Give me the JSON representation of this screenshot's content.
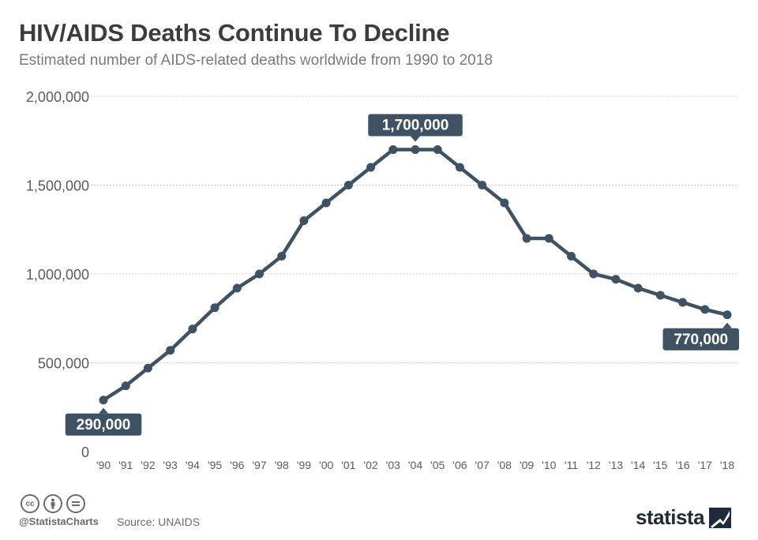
{
  "header": {
    "title": "HIV/AIDS Deaths Continue To Decline",
    "subtitle": "Estimated number of AIDS-related deaths worldwide from 1990 to 2018"
  },
  "footer": {
    "handle": "@StatistaCharts",
    "source": "Source: UNAIDS",
    "brand": "statista",
    "icons": [
      "cc-icon",
      "attribution-person-icon",
      "no-derivatives-icon"
    ]
  },
  "colors": {
    "line": "#3e5263",
    "label_bg": "#3e5263",
    "grid": "#cfcfcf",
    "axis_text": "#5a5a5a"
  },
  "chart_data": {
    "type": "line",
    "title": "HIV/AIDS Deaths Continue To Decline",
    "subtitle": "Estimated number of AIDS-related deaths worldwide from 1990 to 2018",
    "xlabel": "",
    "ylabel": "",
    "ylim": [
      0,
      2000000
    ],
    "yticks": [
      0,
      500000,
      1000000,
      1500000,
      2000000
    ],
    "ytick_labels": [
      "0",
      "500,000",
      "1,000,000",
      "1,500,000",
      "2,000,000"
    ],
    "grid": true,
    "categories": [
      "'90",
      "'91",
      "'92",
      "'93",
      "'94",
      "'95",
      "'96",
      "'97",
      "'98",
      "'99",
      "'00",
      "'01",
      "'02",
      "'03",
      "'04",
      "'05",
      "'06",
      "'07",
      "'08",
      "'09",
      "'10",
      "'11",
      "'12",
      "'13",
      "'14",
      "'15",
      "'16",
      "'17",
      "'18"
    ],
    "series": [
      {
        "name": "AIDS-related deaths",
        "values": [
          290000,
          370000,
          470000,
          570000,
          690000,
          810000,
          920000,
          1000000,
          1100000,
          1300000,
          1400000,
          1500000,
          1600000,
          1700000,
          1700000,
          1700000,
          1600000,
          1500000,
          1400000,
          1200000,
          1200000,
          1100000,
          1000000,
          970000,
          920000,
          880000,
          840000,
          800000,
          770000
        ]
      }
    ],
    "annotations": [
      {
        "index": 0,
        "text": "290,000",
        "position": "below"
      },
      {
        "index": 14,
        "text": "1,700,000",
        "position": "above"
      },
      {
        "index": 28,
        "text": "770,000",
        "position": "below"
      }
    ]
  }
}
